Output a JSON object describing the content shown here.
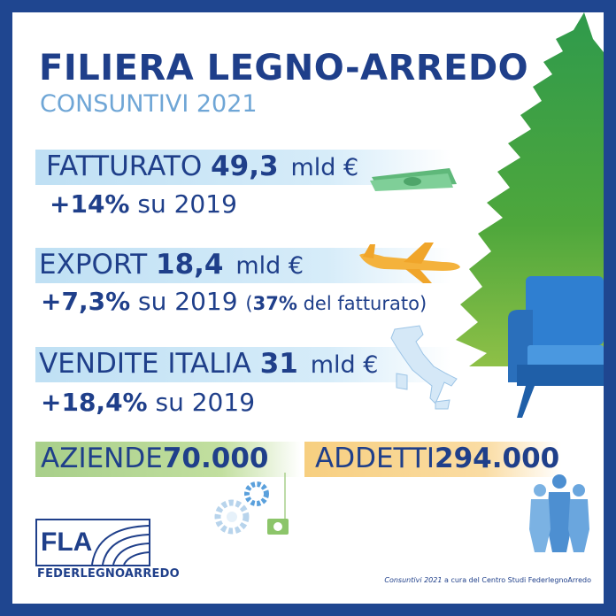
{
  "title": "FILIERA LEGNO-ARREDO",
  "subtitle": "CONSUNTIVI 2021",
  "fatturato": {
    "label": "FATTURATO",
    "value": "49,3",
    "unit": "mld €",
    "growth": "+14%",
    "growth_suffix": " su 2019"
  },
  "export": {
    "label": "EXPORT",
    "value": "18,4",
    "unit": "mld €",
    "growth": "+7,3%",
    "growth_suffix": " su 2019 ",
    "note_open": "(",
    "note_value": "37%",
    "note_text": " del fatturato)"
  },
  "vendite": {
    "label": "VENDITE ITALIA",
    "value": "31",
    "unit": "mld €",
    "growth": "+18,4%",
    "growth_suffix": " su 2019"
  },
  "aziende": {
    "label": "AZIENDE",
    "value": "70.000"
  },
  "addetti": {
    "label": "ADDETTI",
    "value": "294.000"
  },
  "logo": {
    "mark": "FLA",
    "name": "FEDERLEGNOARREDO"
  },
  "credit": {
    "italic": "Consuntivi 2021",
    "text": " a cura del Centro Studi FederlegnoArredo"
  },
  "colors": {
    "navy": "#1f3f8a",
    "light_blue": "#6fa6d6",
    "tree_green": "#5aa63c",
    "sofa_blue": "#2f7fd1",
    "border": "#1f4690"
  }
}
